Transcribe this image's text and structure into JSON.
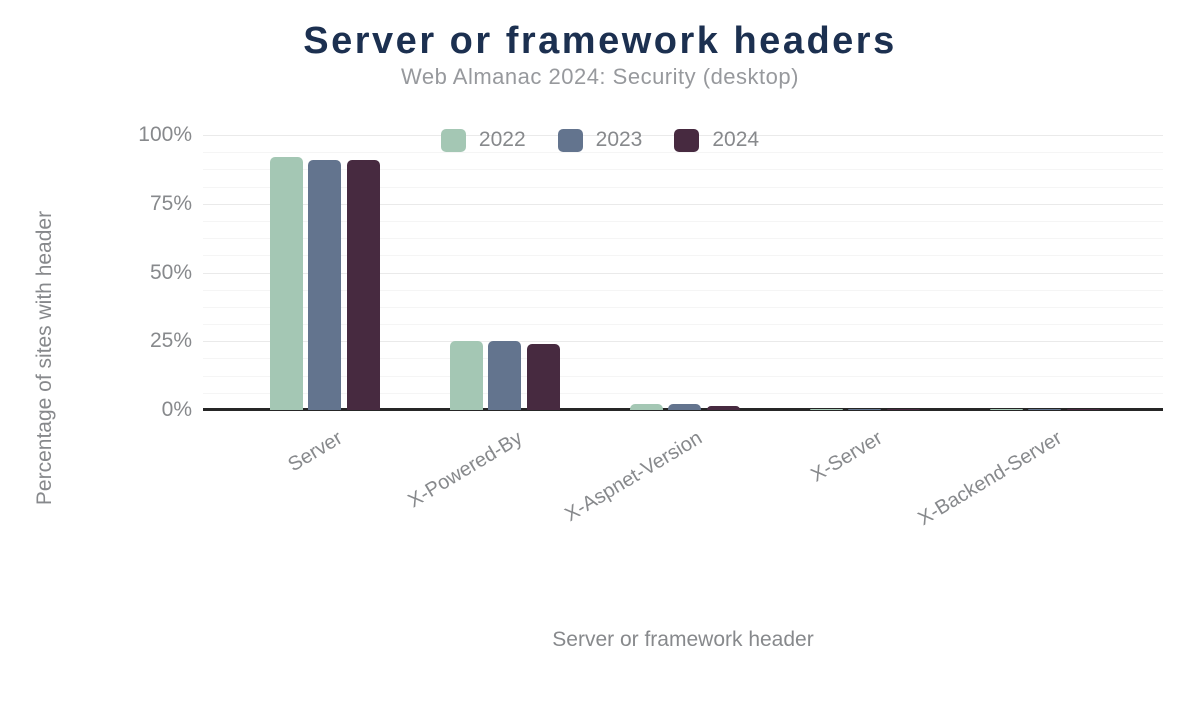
{
  "header": {
    "title": "Server or framework headers",
    "subtitle": "Web Almanac 2024: Security (desktop)"
  },
  "chart_data": {
    "type": "bar",
    "title": "Server or framework headers",
    "subtitle": "Web Almanac 2024: Security (desktop)",
    "categories": [
      "Server",
      "X-Powered-By",
      "X-Aspnet-Version",
      "X-Server",
      "X-Backend-Server"
    ],
    "series": [
      {
        "name": "2022",
        "color": "#a4c7b4",
        "values": [
          92,
          25,
          2.2,
          0.5,
          0.5
        ]
      },
      {
        "name": "2023",
        "color": "#63748e",
        "values": [
          91,
          25,
          2.1,
          0.5,
          0.5
        ]
      },
      {
        "name": "2024",
        "color": "#472a40",
        "values": [
          91,
          24,
          1.3,
          0.4,
          0.4
        ]
      }
    ],
    "xlabel": "Server or framework header",
    "ylabel": "Percentage of sites with header",
    "ylim": [
      0,
      100
    ],
    "yticks": [
      0,
      25,
      50,
      75,
      100
    ],
    "ytick_suffix": "%",
    "minor_gridline_step": 6.25,
    "grid": true,
    "legend_position": "top-center"
  },
  "colors": {
    "title_text": "#1c3050",
    "subtitle_text": "#97999d",
    "axis_text": "#87898c",
    "grid_minor": "#f5f5f5",
    "grid_major": "#eaeaea",
    "axis_line": "#262626",
    "background": "#ffffff"
  }
}
